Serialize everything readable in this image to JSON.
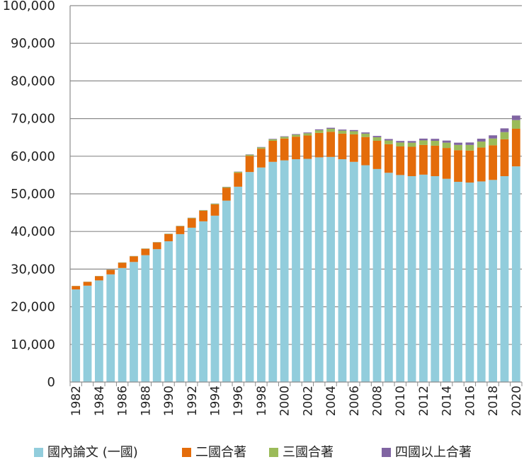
{
  "chart_data": {
    "type": "bar",
    "stacked": true,
    "title": "",
    "xlabel": "",
    "ylabel": "",
    "ylim": [
      0,
      100000
    ],
    "yticks": [
      "0",
      "10,000",
      "20,000",
      "30,000",
      "40,000",
      "50,000",
      "60,000",
      "70,000",
      "80,000",
      "90,000",
      "100,000"
    ],
    "ytick_values": [
      0,
      10000,
      20000,
      30000,
      40000,
      50000,
      60000,
      70000,
      80000,
      90000,
      100000
    ],
    "grid": true,
    "legend_position": "bottom",
    "categories": [
      "1982",
      "1983",
      "1984",
      "1985",
      "1986",
      "1987",
      "1988",
      "1989",
      "1990",
      "1991",
      "1992",
      "1993",
      "1994",
      "1995",
      "1996",
      "1997",
      "1998",
      "1999",
      "2000",
      "2001",
      "2002",
      "2003",
      "2004",
      "2005",
      "2006",
      "2007",
      "2008",
      "2009",
      "2010",
      "2011",
      "2012",
      "2013",
      "2014",
      "2015",
      "2016",
      "2017",
      "2018",
      "2019",
      "2020"
    ],
    "xtick_labels": [
      "1982",
      "1984",
      "1986",
      "1988",
      "1990",
      "1992",
      "1994",
      "1996",
      "1998",
      "2000",
      "2002",
      "2004",
      "2006",
      "2008",
      "2010",
      "2012",
      "2014",
      "2016",
      "2018",
      "2020"
    ],
    "series": [
      {
        "name": "國內論文 (一國)",
        "color": "#92cddc",
        "values": [
          24600,
          25600,
          27000,
          28600,
          30300,
          31900,
          33700,
          35300,
          37400,
          39300,
          41000,
          42700,
          44200,
          48200,
          51900,
          55800,
          57000,
          58500,
          58900,
          59200,
          59300,
          59700,
          59800,
          59200,
          58500,
          57600,
          56600,
          55600,
          55000,
          54700,
          55100,
          54700,
          54000,
          53200,
          53000,
          53300,
          53700,
          54700,
          57300
        ]
      },
      {
        "name": "二國合著",
        "color": "#e46c0a",
        "values": [
          900,
          1000,
          1100,
          1200,
          1400,
          1500,
          1700,
          1800,
          1900,
          2100,
          2500,
          2800,
          3000,
          3400,
          3700,
          4300,
          5000,
          5600,
          5800,
          6000,
          6200,
          6500,
          6700,
          6800,
          7300,
          7500,
          7500,
          7600,
          7600,
          7800,
          7900,
          8100,
          8200,
          8400,
          8500,
          9000,
          9200,
          9800,
          10000
        ]
      },
      {
        "name": "三國合著",
        "color": "#9bbb59",
        "values": [
          50,
          50,
          60,
          60,
          70,
          70,
          80,
          80,
          100,
          100,
          120,
          150,
          180,
          200,
          250,
          300,
          350,
          400,
          450,
          500,
          600,
          700,
          800,
          800,
          850,
          900,
          950,
          1000,
          1050,
          1100,
          1200,
          1300,
          1400,
          1400,
          1500,
          1600,
          1800,
          1900,
          2300
        ]
      },
      {
        "name": "四國以上合著",
        "color": "#8064a2",
        "values": [
          10,
          10,
          10,
          15,
          15,
          20,
          20,
          25,
          30,
          30,
          40,
          40,
          50,
          60,
          70,
          90,
          100,
          120,
          140,
          170,
          200,
          230,
          260,
          280,
          300,
          320,
          340,
          370,
          400,
          430,
          480,
          520,
          560,
          600,
          650,
          750,
          850,
          1000,
          1200
        ]
      }
    ]
  }
}
